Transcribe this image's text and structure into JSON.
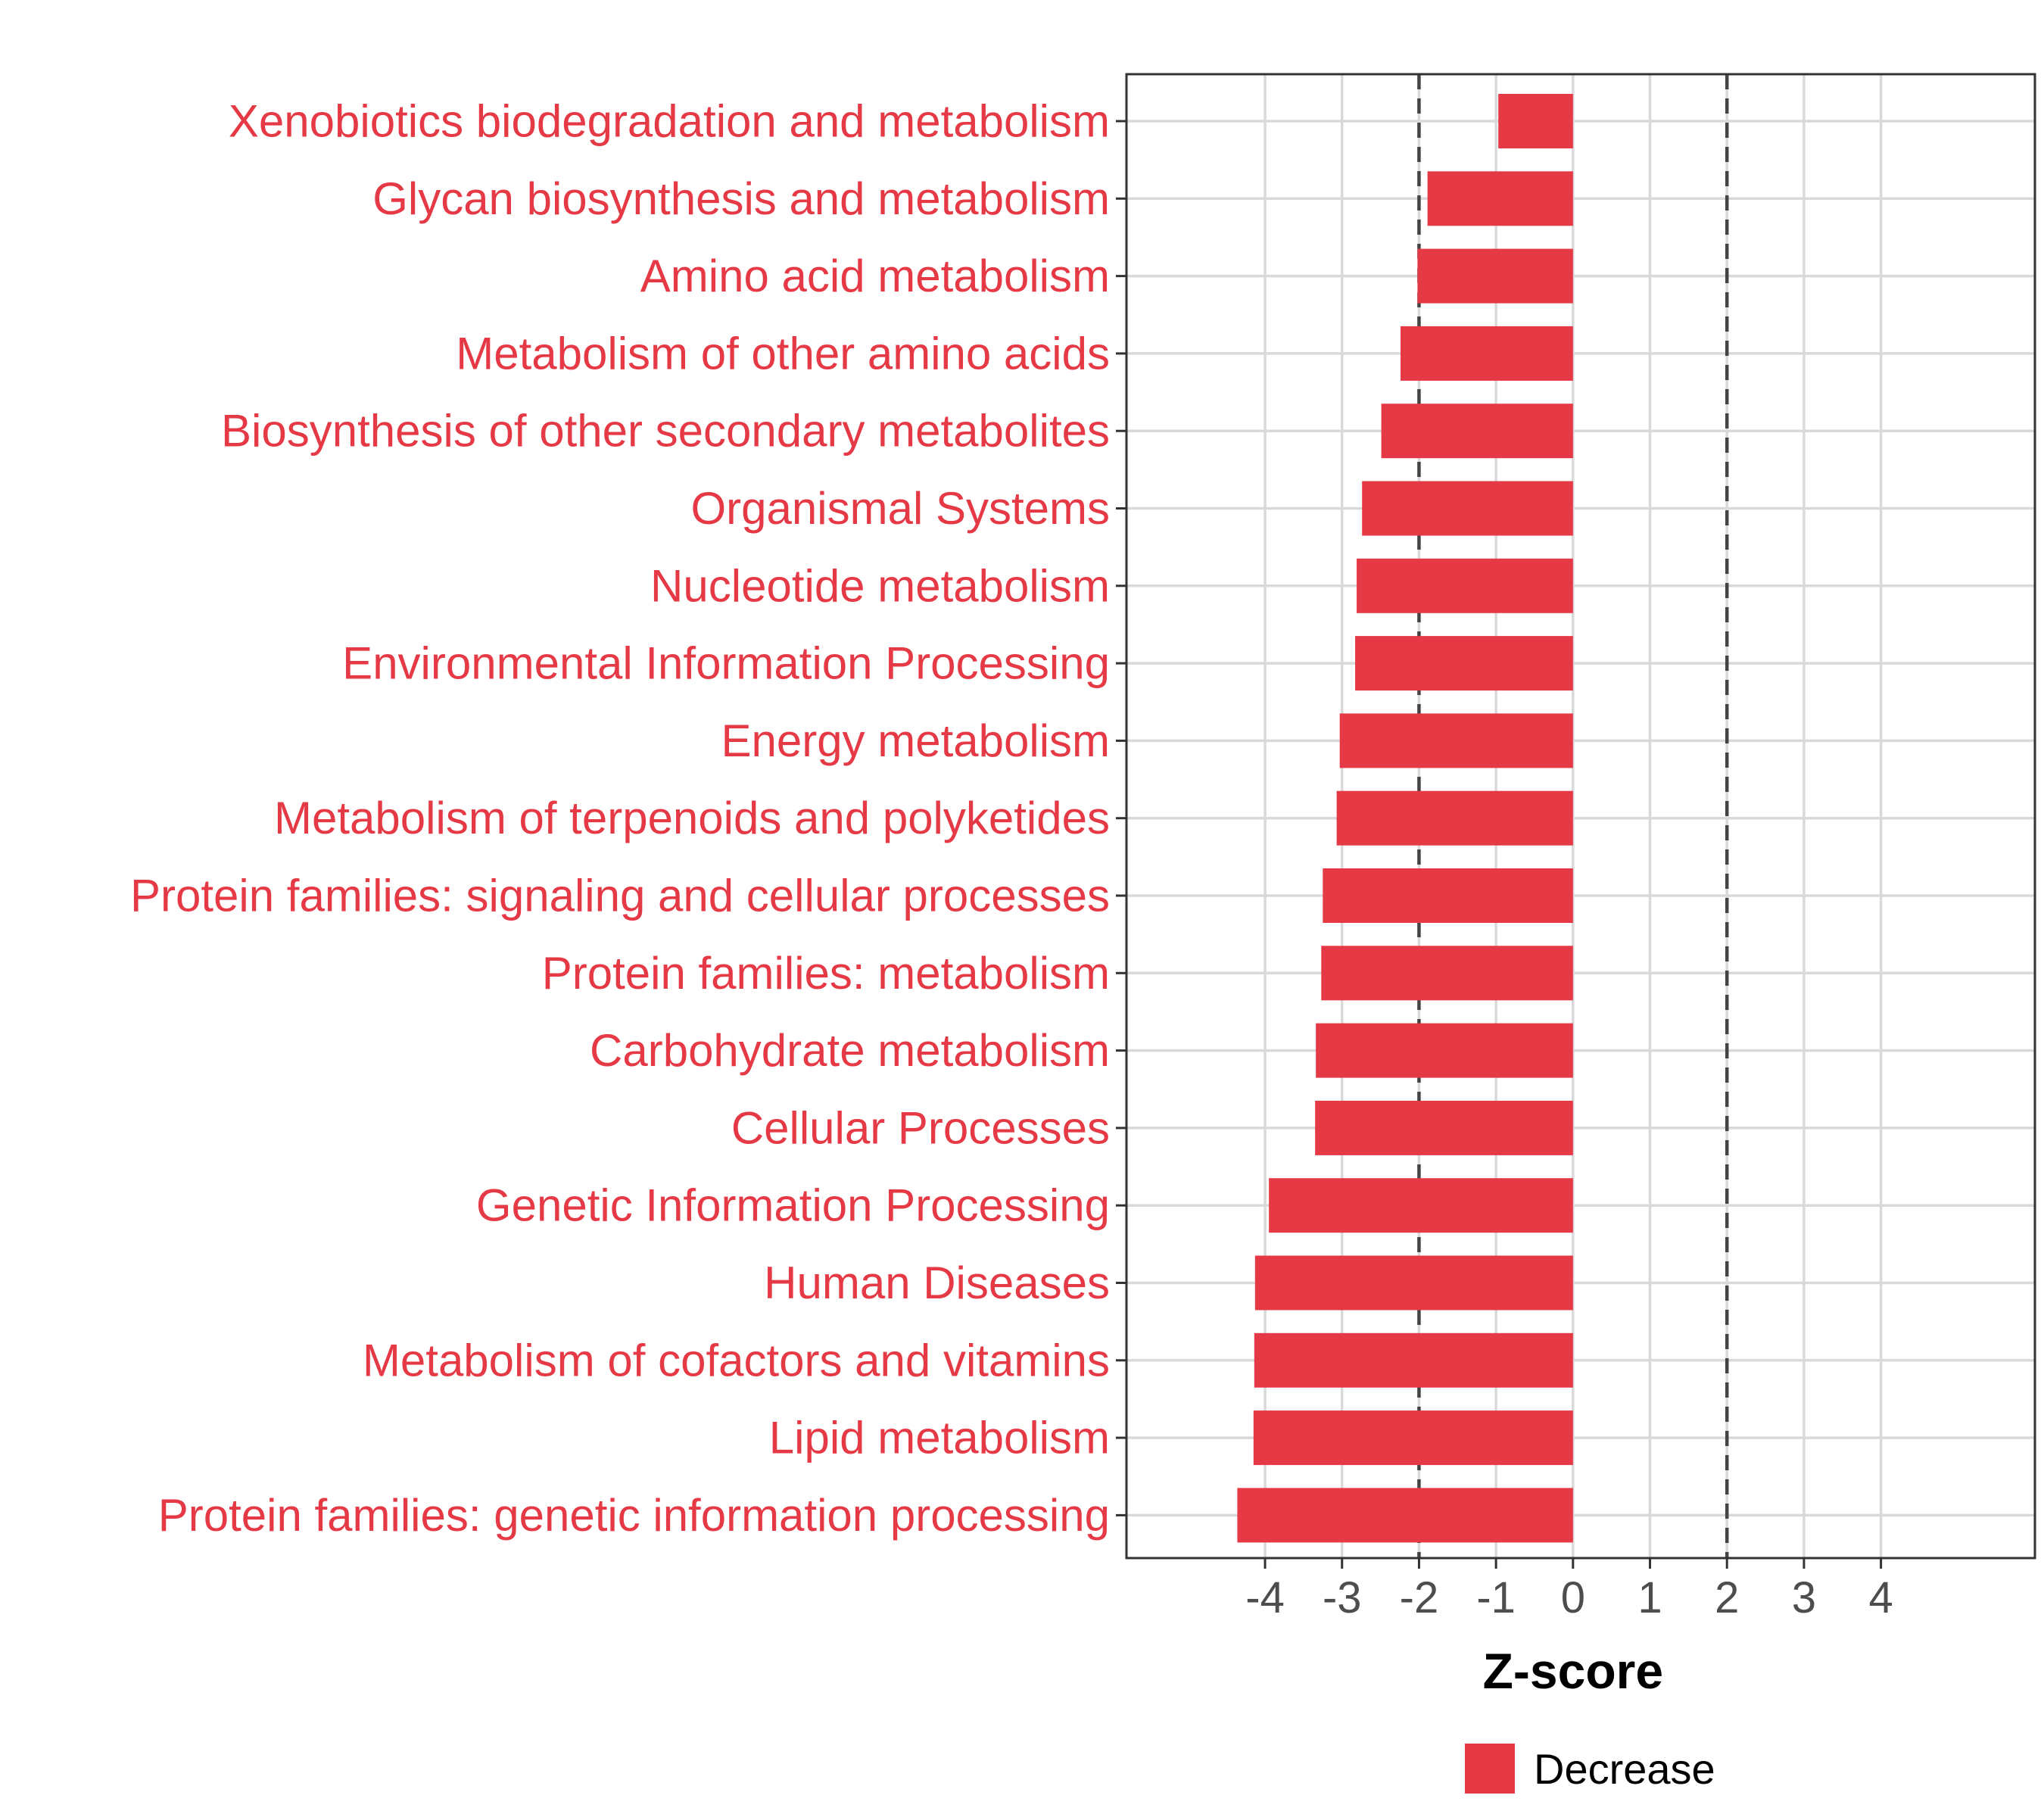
{
  "colors": {
    "bar": "#e63946",
    "label": "#e63946",
    "grid": "#d9d9d9",
    "refline": "#444444",
    "tick": "#4d4d4d",
    "panel_border": "#333333"
  },
  "chart_data": {
    "type": "bar",
    "orientation": "horizontal",
    "title": "",
    "xlabel": "Z-score",
    "ylabel": "",
    "xlim": [
      -5.8,
      6
    ],
    "x_ticks": [
      -4,
      -3,
      -2,
      -1,
      0,
      1,
      2,
      3,
      4
    ],
    "x_tick_labels": [
      "-4",
      "-3",
      "-2",
      "-1",
      "0",
      "1",
      "2",
      "3",
      "4"
    ],
    "reference_lines": [
      -2,
      2
    ],
    "grid": true,
    "categories": [
      "Xenobiotics biodegradation and metabolism",
      "Glycan biosynthesis and metabolism",
      "Amino acid metabolism",
      "Metabolism of other amino acids",
      "Biosynthesis of other secondary metabolites",
      "Organismal Systems",
      "Nucleotide metabolism",
      "Environmental Information Processing",
      "Energy metabolism",
      "Metabolism of terpenoids and polyketides",
      "Protein families: signaling and cellular processes",
      "Protein families: metabolism",
      "Carbohydrate metabolism",
      "Cellular Processes",
      "Genetic Information Processing",
      "Human Diseases",
      "Metabolism of cofactors and vitamins",
      "Lipid metabolism",
      "Protein families: genetic information processing"
    ],
    "series": [
      {
        "name": "Decrease",
        "values": [
          -0.97,
          -1.89,
          -2.02,
          -2.24,
          -2.49,
          -2.74,
          -2.81,
          -2.83,
          -3.03,
          -3.07,
          -3.25,
          -3.27,
          -3.34,
          -3.35,
          -3.95,
          -4.13,
          -4.14,
          -4.15,
          -4.36
        ]
      }
    ],
    "legend": {
      "position": "bottom",
      "entries": [
        "Decrease"
      ]
    }
  }
}
